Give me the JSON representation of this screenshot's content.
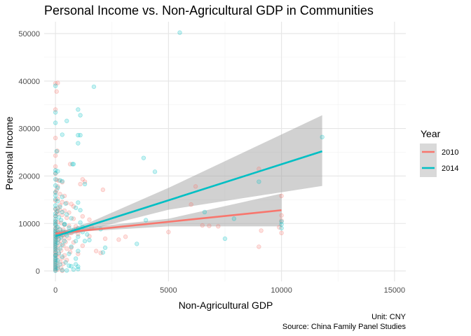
{
  "chart_data": {
    "type": "scatter",
    "title": "Personal Income vs. Non-Agricultural GDP in Communities",
    "xlabel": "Non-Agricultural GDP",
    "ylabel": "Personal Income",
    "xlim": [
      -500,
      15500
    ],
    "ylim": [
      -2200,
      52500
    ],
    "x_ticks": [
      0,
      5000,
      10000,
      15000
    ],
    "x_tick_labels": [
      "0",
      "5000",
      "10000",
      "15000"
    ],
    "y_ticks": [
      0,
      10000,
      20000,
      30000,
      40000,
      50000
    ],
    "y_tick_labels": [
      "0",
      "10000",
      "20000",
      "30000",
      "40000",
      "50000"
    ],
    "grid": true,
    "legend": {
      "title": "Year",
      "position": "right",
      "entries": [
        {
          "label": "2010",
          "color": "#F8766D"
        },
        {
          "label": "2014",
          "color": "#00BFC4"
        }
      ]
    },
    "series": [
      {
        "name": "2010",
        "color": "#F8766D",
        "points": [
          [
            0,
            39500
          ],
          [
            100,
            39600
          ],
          [
            50,
            37800
          ],
          [
            0,
            34000
          ],
          [
            0,
            28000
          ],
          [
            80,
            25300
          ],
          [
            0,
            24300
          ],
          [
            0,
            22000
          ],
          [
            0,
            20500
          ],
          [
            50,
            19200
          ],
          [
            150,
            19000
          ],
          [
            300,
            18700
          ],
          [
            100,
            17800
          ],
          [
            50,
            17000
          ],
          [
            0,
            16500
          ],
          [
            200,
            16200
          ],
          [
            400,
            15800
          ],
          [
            100,
            15200
          ],
          [
            0,
            14800
          ],
          [
            300,
            14500
          ],
          [
            500,
            14300
          ],
          [
            700,
            14100
          ],
          [
            800,
            13600
          ],
          [
            100,
            13200
          ],
          [
            0,
            13000
          ],
          [
            200,
            12800
          ],
          [
            400,
            12700
          ],
          [
            50,
            12400
          ],
          [
            600,
            12300
          ],
          [
            100,
            12000
          ],
          [
            300,
            11800
          ],
          [
            0,
            11500
          ],
          [
            500,
            11200
          ],
          [
            800,
            11000
          ],
          [
            1200,
            11500
          ],
          [
            1100,
            18300
          ],
          [
            1300,
            18800
          ],
          [
            1200,
            19300
          ],
          [
            2100,
            17100
          ],
          [
            1500,
            10800
          ],
          [
            0,
            10500
          ],
          [
            100,
            10300
          ],
          [
            250,
            10100
          ],
          [
            0,
            9800
          ],
          [
            400,
            9700
          ],
          [
            600,
            9500
          ],
          [
            50,
            9200
          ],
          [
            900,
            9400
          ],
          [
            0,
            9000
          ],
          [
            200,
            8800
          ],
          [
            350,
            8700
          ],
          [
            0,
            8400
          ],
          [
            100,
            8200
          ],
          [
            500,
            8100
          ],
          [
            700,
            8000
          ],
          [
            0,
            7800
          ],
          [
            150,
            7600
          ],
          [
            300,
            7500
          ],
          [
            0,
            7300
          ],
          [
            50,
            7100
          ],
          [
            400,
            7000
          ],
          [
            600,
            6900
          ],
          [
            0,
            6700
          ],
          [
            100,
            6500
          ],
          [
            250,
            6400
          ],
          [
            0,
            6200
          ],
          [
            450,
            6100
          ],
          [
            800,
            6000
          ],
          [
            0,
            5800
          ],
          [
            200,
            5600
          ],
          [
            0,
            5400
          ],
          [
            350,
            5300
          ],
          [
            0,
            5000
          ],
          [
            100,
            4800
          ],
          [
            500,
            4700
          ],
          [
            0,
            4500
          ],
          [
            250,
            4300
          ],
          [
            0,
            4100
          ],
          [
            650,
            4000
          ],
          [
            0,
            3800
          ],
          [
            150,
            3600
          ],
          [
            0,
            3400
          ],
          [
            400,
            3300
          ],
          [
            0,
            3100
          ],
          [
            100,
            2900
          ],
          [
            300,
            2700
          ],
          [
            0,
            2500
          ],
          [
            500,
            2300
          ],
          [
            0,
            2100
          ],
          [
            200,
            1900
          ],
          [
            0,
            1700
          ],
          [
            350,
            1500
          ],
          [
            0,
            1300
          ],
          [
            100,
            1100
          ],
          [
            0,
            900
          ],
          [
            250,
            700
          ],
          [
            0,
            500
          ],
          [
            100,
            300
          ],
          [
            0,
            150
          ],
          [
            300,
            50
          ],
          [
            1500,
            7300
          ],
          [
            2200,
            6800
          ],
          [
            1800,
            4200
          ],
          [
            2000,
            3800
          ],
          [
            1200,
            5300
          ],
          [
            1000,
            7800
          ],
          [
            900,
            8600
          ],
          [
            1600,
            9200
          ],
          [
            2800,
            6600
          ],
          [
            3100,
            7200
          ],
          [
            6200,
            17800
          ],
          [
            6000,
            14000
          ],
          [
            6500,
            9600
          ],
          [
            6800,
            9500
          ],
          [
            7200,
            9400
          ],
          [
            9000,
            21500
          ],
          [
            9100,
            8500
          ],
          [
            9000,
            5100
          ],
          [
            10000,
            15800
          ],
          [
            10000,
            11700
          ],
          [
            10000,
            10600
          ],
          [
            10000,
            8000
          ],
          [
            9900,
            9200
          ],
          [
            5000,
            8200
          ],
          [
            650,
            22500
          ],
          [
            1000,
            3600
          ],
          [
            700,
            4900
          ],
          [
            200,
            13800
          ]
        ]
      },
      {
        "name": "2014",
        "color": "#00BFC4",
        "points": [
          [
            5500,
            50200
          ],
          [
            1700,
            38800
          ],
          [
            0,
            39000
          ],
          [
            0,
            33400
          ],
          [
            1000,
            34000
          ],
          [
            0,
            31200
          ],
          [
            1100,
            32800
          ],
          [
            1000,
            28600
          ],
          [
            1100,
            28600
          ],
          [
            500,
            31600
          ],
          [
            300,
            28700
          ],
          [
            1000,
            26900
          ],
          [
            50,
            25200
          ],
          [
            0,
            21200
          ],
          [
            100,
            21000
          ],
          [
            0,
            20600
          ],
          [
            0,
            19300
          ],
          [
            200,
            19100
          ],
          [
            300,
            18900
          ],
          [
            0,
            18000
          ],
          [
            100,
            17500
          ],
          [
            1300,
            18300
          ],
          [
            800,
            22500
          ],
          [
            750,
            22500
          ],
          [
            3900,
            23800
          ],
          [
            4400,
            20900
          ],
          [
            9000,
            18800
          ],
          [
            11800,
            28200
          ],
          [
            0,
            16600
          ],
          [
            0,
            15900
          ],
          [
            300,
            15600
          ],
          [
            0,
            15100
          ],
          [
            100,
            14700
          ],
          [
            450,
            14200
          ],
          [
            0,
            13800
          ],
          [
            200,
            13500
          ],
          [
            0,
            13100
          ],
          [
            900,
            13300
          ],
          [
            1100,
            12800
          ],
          [
            100,
            12600
          ],
          [
            300,
            12400
          ],
          [
            0,
            12100
          ],
          [
            500,
            11900
          ],
          [
            0,
            11600
          ],
          [
            150,
            11300
          ],
          [
            700,
            11100
          ],
          [
            0,
            10900
          ],
          [
            250,
            10700
          ],
          [
            0,
            10400
          ],
          [
            1000,
            14400
          ],
          [
            1100,
            10200
          ],
          [
            0,
            10000
          ],
          [
            400,
            9800
          ],
          [
            0,
            9600
          ],
          [
            100,
            9300
          ],
          [
            600,
            9100
          ],
          [
            0,
            8900
          ],
          [
            200,
            8700
          ],
          [
            0,
            8500
          ],
          [
            350,
            8300
          ],
          [
            800,
            8600
          ],
          [
            0,
            8100
          ],
          [
            100,
            7900
          ],
          [
            0,
            7700
          ],
          [
            500,
            7500
          ],
          [
            0,
            7300
          ],
          [
            250,
            7100
          ],
          [
            0,
            6900
          ],
          [
            150,
            6700
          ],
          [
            0,
            6500
          ],
          [
            400,
            6300
          ],
          [
            0,
            6100
          ],
          [
            100,
            5900
          ],
          [
            0,
            5700
          ],
          [
            300,
            5500
          ],
          [
            0,
            5300
          ],
          [
            700,
            5100
          ],
          [
            0,
            4900
          ],
          [
            200,
            4700
          ],
          [
            0,
            4500
          ],
          [
            1000,
            4200
          ],
          [
            0,
            4000
          ],
          [
            150,
            3800
          ],
          [
            600,
            3600
          ],
          [
            0,
            3400
          ],
          [
            0,
            3200
          ],
          [
            300,
            3000
          ],
          [
            0,
            2800
          ],
          [
            900,
            2600
          ],
          [
            0,
            2400
          ],
          [
            100,
            2200
          ],
          [
            0,
            2000
          ],
          [
            450,
            1800
          ],
          [
            0,
            1600
          ],
          [
            200,
            1400
          ],
          [
            0,
            1200
          ],
          [
            700,
            1000
          ],
          [
            0,
            800
          ],
          [
            100,
            600
          ],
          [
            0,
            400
          ],
          [
            300,
            200
          ],
          [
            0,
            50
          ],
          [
            500,
            100
          ],
          [
            800,
            300
          ],
          [
            1000,
            900
          ],
          [
            900,
            1400
          ],
          [
            600,
            1100
          ],
          [
            1000,
            400
          ],
          [
            1400,
            7700
          ],
          [
            1200,
            8200
          ],
          [
            2200,
            4900
          ],
          [
            2100,
            3900
          ],
          [
            3600,
            5700
          ],
          [
            4000,
            10700
          ],
          [
            6600,
            12400
          ],
          [
            7500,
            6800
          ],
          [
            7900,
            11000
          ],
          [
            10000,
            9800
          ],
          [
            10000,
            9000
          ],
          [
            10000,
            10400
          ],
          [
            1000,
            7200
          ],
          [
            1300,
            6300
          ],
          [
            1500,
            6500
          ],
          [
            2000,
            8800
          ],
          [
            900,
            6300
          ],
          [
            1200,
            9300
          ],
          [
            400,
            9900
          ],
          [
            1000,
            8900
          ]
        ]
      }
    ],
    "fits": [
      {
        "name": "2010",
        "color": "#F8766D",
        "x": [
          0,
          10000
        ],
        "y": [
          7900,
          12800
        ]
      },
      {
        "name": "2014",
        "color": "#00BFC4",
        "x": [
          0,
          11800
        ],
        "y": [
          7300,
          25200
        ]
      }
    ],
    "bands": [
      {
        "name": "2010",
        "x": [
          0,
          1500,
          5000,
          10000
        ],
        "lower": [
          7400,
          8400,
          9400,
          9400
        ],
        "upper": [
          8400,
          9200,
          11000,
          16300
        ]
      },
      {
        "name": "2014",
        "x": [
          0,
          1500,
          5000,
          11800
        ],
        "lower": [
          6700,
          8700,
          12900,
          17900
        ],
        "upper": [
          7900,
          10200,
          17500,
          32800
        ]
      }
    ],
    "captions": [
      "Unit: CNY",
      "Source: China Family Panel Studies"
    ]
  }
}
